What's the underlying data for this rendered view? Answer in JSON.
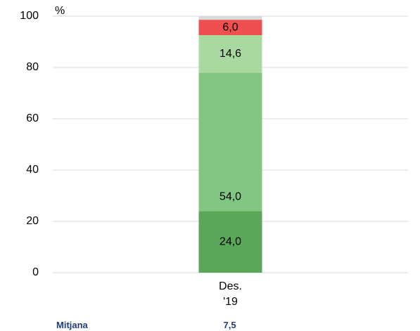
{
  "chart_data": {
    "type": "stacked_bar",
    "y_label": "%",
    "categories": [
      "Des.\n'19"
    ],
    "series": [
      {
        "color": "#5aa75a",
        "values": [
          24.0
        ],
        "value_labels": [
          "24,0"
        ]
      },
      {
        "color": "#83c684",
        "values": [
          54.0
        ],
        "value_labels": [
          "54,0"
        ]
      },
      {
        "color": "#a9d9a0",
        "values": [
          14.6
        ],
        "value_labels": [
          "14,6"
        ]
      },
      {
        "color": "#ee5050",
        "values": [
          6.0
        ],
        "value_labels": [
          "6,0"
        ]
      },
      {
        "color": "#d9d9d9",
        "values": [
          1.4
        ]
      }
    ],
    "ylim": [
      0,
      100
    ],
    "yticks": [
      0,
      20,
      40,
      60,
      80,
      100
    ],
    "grid": true,
    "summary": {
      "label": "Mitjana",
      "values": [
        "7,5"
      ]
    }
  }
}
